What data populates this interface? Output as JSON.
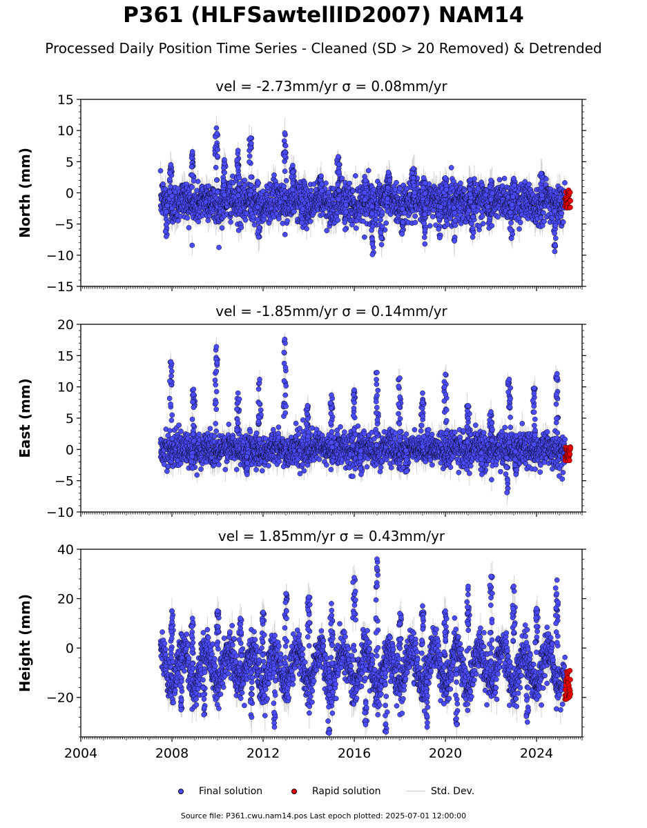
{
  "title": "P361 (HLFSawtellID2007) NAM14",
  "subtitle": "Processed Daily Position Time Series - Cleaned (SD > 20 Removed) & Detrended",
  "legend": {
    "final": "Final solution",
    "rapid": "Rapid solution",
    "std": "Std. Dev."
  },
  "source": "Source file: P361.cwu.nam14.pos  Last epoch plotted: 2025-07-01 12:00:00",
  "colors": {
    "final": "#4b4bff",
    "rapid": "#ee0000",
    "std": "#b0b0b0",
    "edge": "#000000"
  },
  "chart_data": [
    {
      "type": "scatter",
      "panel": "north",
      "title": "vel = -2.73mm/yr   σ = 0.08mm/yr",
      "ylabel": "North (mm)",
      "xlim": [
        2004,
        2026
      ],
      "ylim": [
        -15,
        15
      ],
      "yticks": [
        -15,
        -10,
        -5,
        0,
        5,
        10,
        15
      ],
      "ytick_labels": [
        "−15",
        "−10",
        "−5",
        "0",
        "5",
        "10",
        "15"
      ],
      "data_start": 2007.5,
      "rapid_start": 2025.25,
      "data_end": 2025.5,
      "baseline": -1.5,
      "spread": 1.6,
      "seasonal_amp": 0.6,
      "peaks": [
        [
          2007.95,
          4.5
        ],
        [
          2008.9,
          6.6
        ],
        [
          2009.95,
          10.4
        ],
        [
          2010.3,
          5.3
        ],
        [
          2010.9,
          6.8
        ],
        [
          2011.45,
          8.8
        ],
        [
          2012.95,
          9.6
        ],
        [
          2013.3,
          4.4
        ],
        [
          2014.55,
          2.7
        ],
        [
          2015.3,
          5.8
        ],
        [
          2016.5,
          2.0
        ],
        [
          2017.5,
          3.3
        ],
        [
          2018.6,
          3.9
        ],
        [
          2019.05,
          2.4
        ],
        [
          2020.0,
          2.4
        ],
        [
          2021.1,
          2.1
        ],
        [
          2022.0,
          2.0
        ],
        [
          2023.0,
          2.3
        ],
        [
          2024.2,
          3.1
        ]
      ],
      "dips": [
        [
          2007.75,
          -7.0
        ],
        [
          2011.8,
          -7.1
        ],
        [
          2013.7,
          -4.8
        ],
        [
          2015.6,
          -5.9
        ],
        [
          2016.8,
          -9.9
        ],
        [
          2017.2,
          -8.3
        ],
        [
          2018.1,
          -6.6
        ],
        [
          2019.1,
          -8.2
        ],
        [
          2019.75,
          -7.2
        ],
        [
          2020.4,
          -7.7
        ],
        [
          2021.2,
          -7.1
        ],
        [
          2022.9,
          -7.3
        ],
        [
          2024.8,
          -9.4
        ]
      ],
      "rapid_range": [
        -2.5,
        0.5
      ]
    },
    {
      "type": "scatter",
      "panel": "east",
      "title": "vel = -1.85mm/yr   σ = 0.14mm/yr",
      "ylabel": "East (mm)",
      "xlim": [
        2004,
        2026
      ],
      "ylim": [
        -10,
        20
      ],
      "yticks": [
        -10,
        -5,
        0,
        5,
        10,
        15,
        20
      ],
      "ytick_labels": [
        "−10",
        "−5",
        "0",
        "5",
        "10",
        "15",
        "20"
      ],
      "data_start": 2007.5,
      "rapid_start": 2025.25,
      "data_end": 2025.5,
      "baseline": 0.0,
      "spread": 1.3,
      "seasonal_amp": 0.4,
      "peaks": [
        [
          2007.95,
          14.0
        ],
        [
          2008.95,
          9.6
        ],
        [
          2009.95,
          16.4
        ],
        [
          2010.9,
          9.0
        ],
        [
          2011.85,
          11.2
        ],
        [
          2012.95,
          17.6
        ],
        [
          2013.95,
          7.0
        ],
        [
          2015.0,
          8.7
        ],
        [
          2016.0,
          9.5
        ],
        [
          2017.0,
          12.3
        ],
        [
          2018.0,
          11.4
        ],
        [
          2019.0,
          9.0
        ],
        [
          2020.0,
          12.0
        ],
        [
          2021.0,
          7.0
        ],
        [
          2022.0,
          6.0
        ],
        [
          2022.8,
          11.2
        ],
        [
          2023.9,
          9.8
        ],
        [
          2024.9,
          12.1
        ]
      ],
      "dips": [
        [
          2008.9,
          -3.0
        ],
        [
          2011.3,
          -4.0
        ],
        [
          2016.3,
          -4.0
        ],
        [
          2018.3,
          -3.5
        ],
        [
          2021.6,
          -4.0
        ],
        [
          2022.7,
          -6.9
        ],
        [
          2023.1,
          -4.0
        ]
      ],
      "rapid_range": [
        -1.8,
        0.4
      ]
    },
    {
      "type": "scatter",
      "panel": "height",
      "title": "vel = 1.85mm/yr   σ = 0.43mm/yr",
      "ylabel": "Height (mm)",
      "xlim": [
        2004,
        2026
      ],
      "ylim": [
        -36,
        40
      ],
      "yticks": [
        -20,
        0,
        20,
        40
      ],
      "ytick_labels": [
        "−20",
        "0",
        "20",
        "40"
      ],
      "xticks": [
        2004,
        2008,
        2012,
        2016,
        2020,
        2024
      ],
      "xtick_labels": [
        "2004",
        "2008",
        "2012",
        "2016",
        "2020",
        "2024"
      ],
      "data_start": 2007.5,
      "rapid_start": 2025.25,
      "data_end": 2025.5,
      "baseline": -8.0,
      "spread": 4.2,
      "seasonal_amp": 7.5,
      "peaks": [
        [
          2008.0,
          15.0
        ],
        [
          2008.9,
          12.0
        ],
        [
          2010.0,
          15.0
        ],
        [
          2011.0,
          12.0
        ],
        [
          2012.0,
          14.5
        ],
        [
          2013.0,
          22.0
        ],
        [
          2014.0,
          20.6
        ],
        [
          2015.0,
          18.0
        ],
        [
          2016.0,
          28.5
        ],
        [
          2017.0,
          36.0
        ],
        [
          2018.0,
          14.0
        ],
        [
          2019.0,
          17.0
        ],
        [
          2020.0,
          15.0
        ],
        [
          2021.0,
          25.0
        ],
        [
          2022.0,
          29.0
        ],
        [
          2023.0,
          25.0
        ],
        [
          2024.0,
          16.0
        ],
        [
          2024.9,
          27.5
        ]
      ],
      "dips": [
        [
          2008.4,
          -25.0
        ],
        [
          2009.4,
          -27.0
        ],
        [
          2011.5,
          -28.0
        ],
        [
          2012.5,
          -32.0
        ],
        [
          2014.9,
          -34.5
        ],
        [
          2016.5,
          -31.0
        ],
        [
          2017.4,
          -34.0
        ],
        [
          2019.2,
          -32.0
        ],
        [
          2020.5,
          -31.0
        ],
        [
          2023.6,
          -30.0
        ]
      ],
      "rapid_range": [
        -21.0,
        -9.0
      ]
    }
  ]
}
